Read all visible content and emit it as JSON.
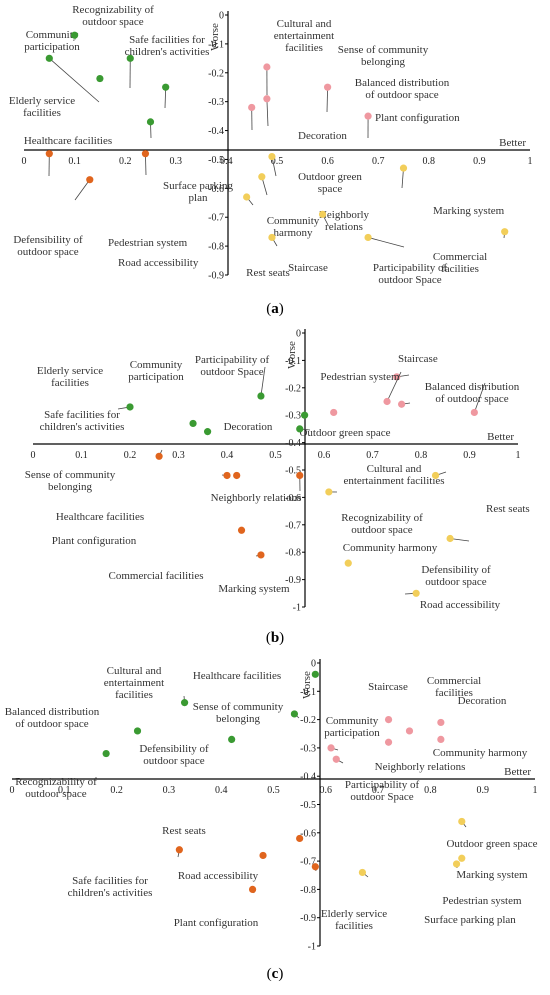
{
  "chart_data": [
    {
      "type": "scatter",
      "panel_label": "a",
      "xlabel": "Better",
      "ylabel": "Worse",
      "xlim": [
        0,
        1
      ],
      "ylim": [
        -0.9,
        0
      ],
      "x_ticks": [
        "0",
        "0.1",
        "0.2",
        "0.3",
        "0.4",
        "0.5",
        "0.6",
        "0.7",
        "0.8",
        "0.9",
        "1"
      ],
      "y_ticks": [
        "0",
        "-0.1",
        "-0.2",
        "-0.3",
        "-0.4",
        "-0.5",
        "-0.6",
        "-0.7",
        "-0.8",
        "-0.9"
      ],
      "colors": {
        "green": "#3a9a32",
        "orange": "#e0651e",
        "pink": "#ef98a0",
        "yellow": "#f2ce5a"
      },
      "points": [
        {
          "label": "Community participation",
          "x": 0.1,
          "y": -0.07,
          "color": "green"
        },
        {
          "label": "Recognizability of outdoor space",
          "x": 0.21,
          "y": -0.15,
          "color": "green"
        },
        {
          "label": "Elderly service facilities",
          "x": 0.05,
          "y": -0.15,
          "color": "green"
        },
        {
          "label": "Safe facilities for children's activities",
          "x": 0.28,
          "y": -0.25,
          "color": "green"
        },
        {
          "label": "Healthcare facilities",
          "x": 0.15,
          "y": -0.22,
          "color": "green"
        },
        {
          "label": "Surface parking plan",
          "x": 0.25,
          "y": -0.37,
          "color": "green"
        },
        {
          "label": "Cultural and entertainment facilities",
          "x": 0.48,
          "y": -0.18,
          "color": "pink"
        },
        {
          "label": "Sense of community belonging",
          "x": 0.45,
          "y": -0.32,
          "color": "pink"
        },
        {
          "label": "Balanced distribution of outdoor space",
          "x": 0.6,
          "y": -0.25,
          "color": "pink"
        },
        {
          "label": "Decoration",
          "x": 0.48,
          "y": -0.29,
          "color": "pink"
        },
        {
          "label": "Plant configuration",
          "x": 0.68,
          "y": -0.35,
          "color": "pink"
        },
        {
          "label": "Defensibility of outdoor space",
          "x": 0.05,
          "y": -0.48,
          "color": "orange"
        },
        {
          "label": "Pedestrian system",
          "x": 0.24,
          "y": -0.48,
          "color": "orange"
        },
        {
          "label": "Road accessibility",
          "x": 0.13,
          "y": -0.57,
          "color": "orange"
        },
        {
          "label": "Outdoor green space",
          "x": 0.49,
          "y": -0.49,
          "color": "yellow"
        },
        {
          "label": "Marking system",
          "x": 0.75,
          "y": -0.53,
          "color": "yellow"
        },
        {
          "label": "Neighborly relations",
          "x": 0.47,
          "y": -0.56,
          "color": "yellow"
        },
        {
          "label": "Community harmony",
          "x": 0.44,
          "y": -0.63,
          "color": "yellow"
        },
        {
          "label": "Staircase",
          "x": 0.59,
          "y": -0.69,
          "color": "yellow"
        },
        {
          "label": "Rest seats",
          "x": 0.49,
          "y": -0.77,
          "color": "yellow"
        },
        {
          "label": "Participability of outdoor Space",
          "x": 0.68,
          "y": -0.77,
          "color": "yellow"
        },
        {
          "label": "Commercial facilities",
          "x": 0.95,
          "y": -0.75,
          "color": "yellow"
        }
      ]
    },
    {
      "type": "scatter",
      "panel_label": "b",
      "xlabel": "Better",
      "ylabel": "Worse",
      "xlim": [
        0,
        1
      ],
      "ylim": [
        -1,
        0
      ],
      "x_ticks": [
        "0",
        "0.1",
        "0.2",
        "0.3",
        "0.4",
        "0.5",
        "0.6",
        "0.7",
        "0.8",
        "0.9",
        "1"
      ],
      "y_ticks": [
        "0",
        "-0.1",
        "-0.2",
        "-0.3",
        "-0.4",
        "-0.5",
        "-0.6",
        "-0.7",
        "-0.8",
        "-0.9",
        "-1"
      ],
      "colors": {
        "green": "#3a9a32",
        "orange": "#e0651e",
        "pink": "#ef98a0",
        "yellow": "#f2ce5a"
      },
      "points": [
        {
          "label": "Elderly service facilities",
          "x": 0.2,
          "y": -0.27,
          "color": "green"
        },
        {
          "label": "Community participation",
          "x": 0.36,
          "y": -0.36,
          "color": "green"
        },
        {
          "label": "Participability of outdoor Space",
          "x": 0.47,
          "y": -0.23,
          "color": "green"
        },
        {
          "label": "Safe facilities for children's activities",
          "x": 0.33,
          "y": -0.33,
          "color": "green"
        },
        {
          "label": "Decoration",
          "x": 0.56,
          "y": -0.3,
          "color": "green"
        },
        {
          "label": "Outdoor green space",
          "x": 0.55,
          "y": -0.35,
          "color": "green"
        },
        {
          "label": "Staircase",
          "x": 0.75,
          "y": -0.16,
          "color": "pink"
        },
        {
          "label": "Pedestrian system",
          "x": 0.73,
          "y": -0.25,
          "color": "pink"
        },
        {
          "label": "Balanced distribution of outdoor space",
          "x": 0.91,
          "y": -0.29,
          "color": "pink"
        },
        {
          "label": "Cultural and entertainment facilities",
          "x": 0.76,
          "y": -0.26,
          "color": "pink"
        },
        {
          "label": "Sense of community belonging",
          "x": 0.62,
          "y": -0.29,
          "color": "pink"
        },
        {
          "label": "Sense of community belonging",
          "x": 0.26,
          "y": -0.45,
          "color": "orange"
        },
        {
          "label": "Healthcare facilities",
          "x": 0.4,
          "y": -0.52,
          "color": "orange"
        },
        {
          "label": "Neighborly relations",
          "x": 0.55,
          "y": -0.52,
          "color": "orange"
        },
        {
          "label": "Plant configuration",
          "x": 0.42,
          "y": -0.52,
          "color": "orange"
        },
        {
          "label": "Commercial facilities",
          "x": 0.43,
          "y": -0.72,
          "color": "orange"
        },
        {
          "label": "Marking system",
          "x": 0.47,
          "y": -0.81,
          "color": "orange"
        },
        {
          "label": "Rest seats",
          "x": 0.83,
          "y": -0.52,
          "color": "yellow"
        },
        {
          "label": "Recognizability of outdoor space",
          "x": 0.61,
          "y": -0.58,
          "color": "yellow"
        },
        {
          "label": "Community harmony",
          "x": 0.65,
          "y": -0.84,
          "color": "yellow"
        },
        {
          "label": "Defensibility of outdoor space",
          "x": 0.86,
          "y": -0.75,
          "color": "yellow"
        },
        {
          "label": "Road accessibility",
          "x": 0.79,
          "y": -0.95,
          "color": "yellow"
        }
      ]
    },
    {
      "type": "scatter",
      "panel_label": "c",
      "xlabel": "Better",
      "ylabel": "Worse",
      "xlim": [
        0,
        1
      ],
      "ylim": [
        -1,
        0
      ],
      "x_ticks": [
        "0",
        "0.1",
        "0.2",
        "0.3",
        "0.4",
        "0.5",
        "0.6",
        "0.7",
        "0.8",
        "0.9",
        "1"
      ],
      "y_ticks": [
        "0",
        "-0.1",
        "-0.2",
        "-0.3",
        "-0.4",
        "-0.5",
        "-0.6",
        "-0.7",
        "-0.8",
        "-0.9",
        "-1"
      ],
      "colors": {
        "green": "#3a9a32",
        "orange": "#e0651e",
        "pink": "#ef98a0",
        "yellow": "#f2ce5a"
      },
      "points": [
        {
          "label": "Healthcare facilities",
          "x": 0.58,
          "y": -0.04,
          "color": "green"
        },
        {
          "label": "Cultural and entertainment facilities",
          "x": 0.33,
          "y": -0.14,
          "color": "green"
        },
        {
          "label": "Sense of community belonging",
          "x": 0.54,
          "y": -0.18,
          "color": "green"
        },
        {
          "label": "Balanced distribution of outdoor space",
          "x": 0.24,
          "y": -0.24,
          "color": "green"
        },
        {
          "label": "Defensibility of outdoor space",
          "x": 0.42,
          "y": -0.27,
          "color": "green"
        },
        {
          "label": "Recognizability of outdoor space",
          "x": 0.18,
          "y": -0.32,
          "color": "green"
        },
        {
          "label": "Staircase",
          "x": 0.72,
          "y": -0.2,
          "color": "pink"
        },
        {
          "label": "Commercial facilities",
          "x": 0.76,
          "y": -0.24,
          "color": "pink"
        },
        {
          "label": "Decoration",
          "x": 0.82,
          "y": -0.21,
          "color": "pink"
        },
        {
          "label": "Community harmony",
          "x": 0.82,
          "y": -0.27,
          "color": "pink"
        },
        {
          "label": "Community participation",
          "x": 0.61,
          "y": -0.3,
          "color": "pink"
        },
        {
          "label": "Neighborly relations",
          "x": 0.72,
          "y": -0.28,
          "color": "pink"
        },
        {
          "label": "Participability of outdoor Space",
          "x": 0.62,
          "y": -0.34,
          "color": "pink"
        },
        {
          "label": "Rest seats",
          "x": 0.55,
          "y": -0.62,
          "color": "orange"
        },
        {
          "label": "Safe facilities for children's activities",
          "x": 0.32,
          "y": -0.66,
          "color": "orange"
        },
        {
          "label": "Road accessibility",
          "x": 0.48,
          "y": -0.68,
          "color": "orange"
        },
        {
          "label": "Plant configuration",
          "x": 0.46,
          "y": -0.8,
          "color": "orange"
        },
        {
          "label": "Elderly service facilities",
          "x": 0.58,
          "y": -0.72,
          "color": "orange"
        },
        {
          "label": "Outdoor green space",
          "x": 0.86,
          "y": -0.56,
          "color": "yellow"
        },
        {
          "label": "Marking system",
          "x": 0.86,
          "y": -0.69,
          "color": "yellow"
        },
        {
          "label": "Pedestrian system",
          "x": 0.85,
          "y": -0.71,
          "color": "yellow"
        },
        {
          "label": "Surface parking plan",
          "x": 0.67,
          "y": -0.74,
          "color": "yellow"
        }
      ]
    }
  ]
}
